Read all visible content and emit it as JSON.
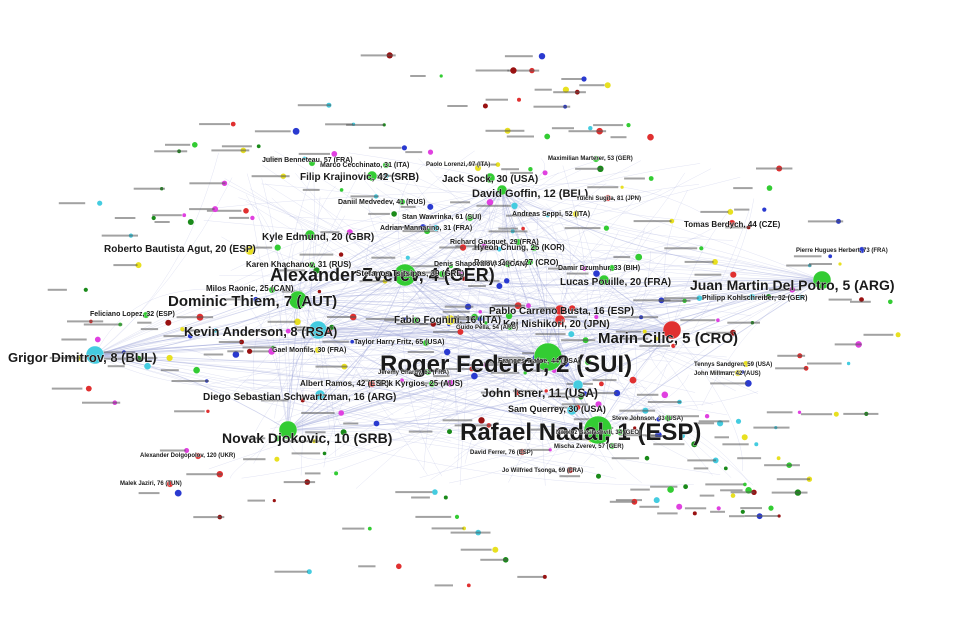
{
  "graph": {
    "colors": {
      "green": "#33cc33",
      "cyan": "#44cce0",
      "red": "#e03030",
      "yellow": "#e8e020",
      "magenta": "#e040e0",
      "darkred": "#991111",
      "darkgreen": "#1a8a1a",
      "blue": "#2a3ad0",
      "edge": "#a8aedc"
    },
    "nodes": [
      {
        "label": "Rafael Nadal, 1 (ESP)",
        "color": "green",
        "size": 5
      },
      {
        "label": "Roger Federer, 2 (SUI)",
        "color": "green",
        "size": 5
      },
      {
        "label": "Alexander Zverev, 4 (GER)",
        "color": "green",
        "size": 4
      },
      {
        "label": "Juan Martin Del Potro, 5 (ARG)",
        "color": "green",
        "size": 3
      },
      {
        "label": "Marin Cilic, 5 (CRO)",
        "color": "red",
        "size": 3
      },
      {
        "label": "Dominic Thiem, 7 (AUT)",
        "color": "green",
        "size": 3
      },
      {
        "label": "Kevin Anderson, 8 (RSA)",
        "color": "cyan",
        "size": 3
      },
      {
        "label": "Grigor Dimitrov, 8 (BUL)",
        "color": "cyan",
        "size": 3
      },
      {
        "label": "Novak Djokovic, 10 (SRB)",
        "color": "green",
        "size": 3
      },
      {
        "label": "John Isner, 11 (USA)",
        "color": "cyan",
        "size": 2
      },
      {
        "label": "David Goffin, 12 (BEL)",
        "color": "green",
        "size": 2
      },
      {
        "label": "Pablo Carreno Busta, 16 (ESP)",
        "color": "red",
        "size": 2
      },
      {
        "label": "Kei Nishikori, 20 (JPN)",
        "color": "red",
        "size": 2
      },
      {
        "label": "Lucas Pouille, 20 (FRA)",
        "color": "green",
        "size": 2
      },
      {
        "label": "Kyle Edmund, 20 (GBR)",
        "color": "green",
        "size": 2
      },
      {
        "label": "Roberto Bautista Agut, 20 (ESP)",
        "color": "yellow",
        "size": 2
      },
      {
        "label": "Diego Sebastian Schwartzman, 16 (ARG)",
        "color": "cyan",
        "size": 2
      },
      {
        "label": "Fabio Fognini, 16 (ITA)",
        "color": "yellow",
        "size": 2
      },
      {
        "label": "Jack Sock, 30 (USA)",
        "color": "green",
        "size": 2
      },
      {
        "label": "Filip Krajinovic, 42 (SRB)",
        "color": "green",
        "size": 2
      },
      {
        "label": "Sam Querrey, 30 (USA)",
        "color": "cyan",
        "size": 2
      },
      {
        "label": "Nick Kyrgios, 25 (AUS)",
        "color": "green",
        "size": 1
      },
      {
        "label": "Albert Ramos, 42 (ESP)",
        "color": "red",
        "size": 1
      },
      {
        "label": "Milos Raonic, 25 (CAN)",
        "color": "green",
        "size": 1
      },
      {
        "label": "Karen Khachanov, 31 (RUS)",
        "color": "green",
        "size": 1
      },
      {
        "label": "Stefanos Tsitsipas, 39 (GRE)",
        "color": "green",
        "size": 1
      },
      {
        "label": "Hyeon Chung, 25 (KOR)",
        "color": "green",
        "size": 1
      },
      {
        "label": "Borna Coric, 27 (CRO)",
        "color": "green",
        "size": 1
      },
      {
        "label": "Tomas Berdych, 44 (CZE)",
        "color": "red",
        "size": 1
      },
      {
        "label": "Philipp Kohlschreiber, 32 (GER)",
        "color": "cyan",
        "size": 1
      },
      {
        "label": "Gael Monfils, 30 (FRA)",
        "color": "yellow",
        "size": 1
      },
      {
        "label": "Andreas Seppi, 52 (ITA)",
        "color": "yellow",
        "size": 1
      },
      {
        "label": "Marco Cecchinato, 31 (ITA)",
        "color": "green",
        "size": 1
      },
      {
        "label": "Daniil Medvedev, 41 (RUS)",
        "color": "green",
        "size": 1
      },
      {
        "label": "Stan Wawrinka, 61 (SUI)",
        "color": "green",
        "size": 1
      },
      {
        "label": "Adrian Mannarino, 31 (FRA)",
        "color": "cyan",
        "size": 1
      },
      {
        "label": "Richard Gasquet, 29 (FRA)",
        "color": "green",
        "size": 1
      },
      {
        "label": "Denis Shapovalov, 34 (CAN)",
        "color": "green",
        "size": 1
      },
      {
        "label": "Damir Dzumhur, 33 (BIH)",
        "color": "green",
        "size": 1
      },
      {
        "label": "Feliciano Lopez, 32 (ESP)",
        "color": "green",
        "size": 1
      },
      {
        "label": "Alexander Dolgopolov, 120 (UKR)",
        "color": "red",
        "size": 1
      },
      {
        "label": "Malek Jaziri, 76 (TUN)",
        "color": "red",
        "size": 1
      },
      {
        "label": "Frances Tiafoe, 44 (USA)",
        "color": "green",
        "size": 1
      },
      {
        "label": "Guido Pella, 54 (ARG)",
        "color": "green",
        "size": 1
      },
      {
        "label": "Taylor Harry Fritz, 65 (USA)",
        "color": "green",
        "size": 1
      },
      {
        "label": "Nikoloz Basilashvili, 34 (GEO)",
        "color": "green",
        "size": 1
      },
      {
        "label": "Mischa Zverev, 57 (GER)",
        "color": "green",
        "size": 1
      },
      {
        "label": "Steve Johnson, 33 (USA)",
        "color": "green",
        "size": 1
      },
      {
        "label": "John Millman, 42 (AUS)",
        "color": "yellow",
        "size": 1
      },
      {
        "label": "Yuichi Sugita, 81 (JPN)",
        "color": "red",
        "size": 1
      },
      {
        "label": "Pierre Hugues Herbert, 73 (FRA)",
        "color": "blue",
        "size": 1
      },
      {
        "label": "Jeremy Chardy, 62 (FRA)",
        "color": "green",
        "size": 1
      },
      {
        "label": "David Ferrer, 76 (ESP)",
        "color": "darkred",
        "size": 1
      },
      {
        "label": "Jo Wilfried Tsonga, 69 (FRA)",
        "color": "darkred",
        "size": 1
      },
      {
        "label": "Julien Benneteau, 57 (FRA)",
        "color": "green",
        "size": 1
      },
      {
        "label": "Paolo Lorenzi, 97 (ITA)",
        "color": "yellow",
        "size": 1
      },
      {
        "label": "Maximilian Marterer, 53 (GER)",
        "color": "green",
        "size": 1
      },
      {
        "label": "Tennys Sandgren, 59 (USA)",
        "color": "yellow",
        "size": 1
      }
    ]
  }
}
